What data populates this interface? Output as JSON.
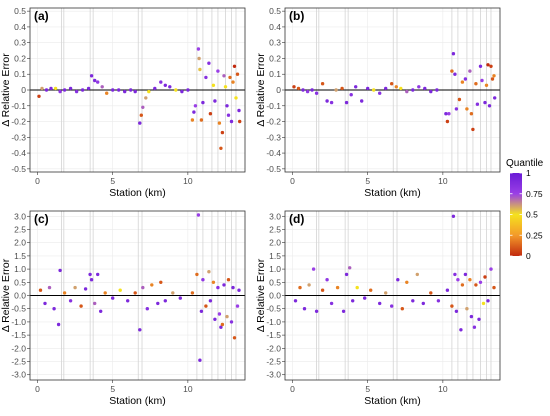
{
  "figure": {
    "ylabel": "Δ Relative Error",
    "xlabel": "Station (km)"
  },
  "legend": {
    "title": "Quantile",
    "ticks": [
      "1",
      "0.75",
      "0.5",
      "0.25",
      "0"
    ],
    "colors": [
      "#6a1bd6",
      "#9a3fe6",
      "#f5e21e",
      "#f39a2a",
      "#c22a0e"
    ]
  },
  "chart_data": [
    {
      "type": "scatter",
      "label": "(a)",
      "xlim": [
        -0.5,
        13.8
      ],
      "ylim": [
        -0.52,
        0.52
      ],
      "xticks": [
        0,
        5,
        10
      ],
      "xtick_labels": [
        "0",
        "5",
        "10"
      ],
      "yticks": [
        -0.5,
        -0.4,
        -0.3,
        -0.2,
        -0.1,
        0,
        0.1,
        0.2,
        0.3,
        0.4,
        0.5
      ],
      "ytick_labels": [
        "-0.5",
        "-0.4",
        "-0.3",
        "-0.2",
        "-0.1",
        "0",
        "0.1",
        "0.2",
        "0.3",
        "0.4",
        "0.5"
      ],
      "vlines": [
        1.6,
        1.75,
        3.5,
        3.7,
        6.7,
        6.95,
        10.6,
        11.0,
        11.6,
        12.0,
        12.5,
        12.9,
        13.2
      ],
      "grid": true,
      "points": [
        [
          0.1,
          -0.04,
          0.05
        ],
        [
          0.3,
          0.01,
          0.6
        ],
        [
          0.6,
          0.0,
          0.9
        ],
        [
          0.9,
          0.01,
          0.9
        ],
        [
          1.2,
          0.01,
          0.5
        ],
        [
          1.5,
          -0.01,
          0.8
        ],
        [
          1.8,
          0.0,
          0.9
        ],
        [
          2.2,
          0.01,
          0.9
        ],
        [
          2.6,
          -0.01,
          0.85
        ],
        [
          3.0,
          0.0,
          0.9
        ],
        [
          3.4,
          0.01,
          0.9
        ],
        [
          3.6,
          0.09,
          0.9
        ],
        [
          3.8,
          0.06,
          0.9
        ],
        [
          4.0,
          0.05,
          0.8
        ],
        [
          4.3,
          0.02,
          0.7
        ],
        [
          4.6,
          -0.02,
          0.2
        ],
        [
          5.0,
          0.0,
          0.9
        ],
        [
          5.4,
          0.0,
          0.9
        ],
        [
          5.8,
          -0.01,
          0.9
        ],
        [
          6.2,
          0.0,
          0.9
        ],
        [
          6.5,
          -0.01,
          0.9
        ],
        [
          6.8,
          -0.21,
          0.9
        ],
        [
          6.9,
          -0.16,
          0.1
        ],
        [
          7.0,
          -0.11,
          0.7
        ],
        [
          7.2,
          -0.05,
          0.6
        ],
        [
          7.4,
          -0.01,
          0.5
        ],
        [
          7.8,
          0.01,
          0.9
        ],
        [
          8.2,
          0.05,
          0.85
        ],
        [
          8.5,
          0.03,
          0.9
        ],
        [
          8.8,
          0.02,
          0.9
        ],
        [
          9.2,
          0.0,
          0.5
        ],
        [
          9.6,
          -0.01,
          0.9
        ],
        [
          10.0,
          0.0,
          0.9
        ],
        [
          10.3,
          -0.19,
          0.2
        ],
        [
          10.4,
          -0.14,
          0.9
        ],
        [
          10.5,
          -0.1,
          0.75
        ],
        [
          10.7,
          0.26,
          0.75
        ],
        [
          10.75,
          0.2,
          0.6
        ],
        [
          10.8,
          0.13,
          0.55
        ],
        [
          10.9,
          -0.19,
          0.15
        ],
        [
          11.0,
          -0.08,
          0.9
        ],
        [
          11.2,
          0.08,
          0.85
        ],
        [
          11.4,
          0.17,
          0.85
        ],
        [
          11.5,
          -0.15,
          0.05
        ],
        [
          11.7,
          0.03,
          0.5
        ],
        [
          11.8,
          -0.07,
          0.9
        ],
        [
          12.0,
          0.12,
          0.75
        ],
        [
          12.1,
          -0.21,
          0.2
        ],
        [
          12.2,
          -0.37,
          0.1
        ],
        [
          12.3,
          -0.27,
          0.05
        ],
        [
          12.4,
          0.09,
          0.7
        ],
        [
          12.5,
          0.02,
          0.5
        ],
        [
          12.6,
          -0.1,
          0.9
        ],
        [
          12.7,
          -0.16,
          0.85
        ],
        [
          12.8,
          0.08,
          0.15
        ],
        [
          12.9,
          -0.2,
          0.9
        ],
        [
          13.0,
          0.05,
          0.2
        ],
        [
          13.1,
          0.15,
          0.0
        ],
        [
          13.2,
          -0.05,
          0.5
        ],
        [
          13.3,
          0.1,
          0.1
        ],
        [
          13.4,
          -0.13,
          0.9
        ],
        [
          13.45,
          -0.2,
          0.05
        ]
      ]
    },
    {
      "type": "scatter",
      "label": "(b)",
      "xlim": [
        -0.5,
        13.8
      ],
      "ylim": [
        -0.52,
        0.52
      ],
      "xticks": [
        0,
        5,
        10
      ],
      "xtick_labels": [
        "0",
        "5",
        "10"
      ],
      "yticks": [
        -0.5,
        -0.4,
        -0.3,
        -0.2,
        -0.1,
        0,
        0.1,
        0.2,
        0.3,
        0.4,
        0.5
      ],
      "ytick_labels": [
        "-0.5",
        "-0.4",
        "-0.3",
        "-0.2",
        "-0.1",
        "0",
        "0.1",
        "0.2",
        "0.3",
        "0.4",
        "0.5"
      ],
      "vlines": [
        1.6,
        1.75,
        3.5,
        3.7,
        6.7,
        6.95,
        10.6,
        11.0,
        11.6,
        12.0,
        12.5,
        12.9,
        13.2
      ],
      "grid": true,
      "points": [
        [
          0.1,
          0.02,
          0.05
        ],
        [
          0.4,
          0.01,
          0.1
        ],
        [
          0.7,
          0.0,
          0.9
        ],
        [
          1.0,
          -0.01,
          0.8
        ],
        [
          1.3,
          0.0,
          0.9
        ],
        [
          1.6,
          -0.02,
          0.85
        ],
        [
          2.0,
          0.04,
          0.1
        ],
        [
          2.3,
          -0.07,
          0.9
        ],
        [
          2.6,
          -0.08,
          0.85
        ],
        [
          2.9,
          0.0,
          0.6
        ],
        [
          3.3,
          0.01,
          0.1
        ],
        [
          3.6,
          -0.08,
          0.9
        ],
        [
          3.9,
          -0.03,
          0.85
        ],
        [
          4.2,
          0.02,
          0.9
        ],
        [
          4.6,
          -0.07,
          0.9
        ],
        [
          5.0,
          0.01,
          0.9
        ],
        [
          5.4,
          0.0,
          0.5
        ],
        [
          5.8,
          -0.02,
          0.85
        ],
        [
          6.2,
          0.01,
          0.9
        ],
        [
          6.6,
          0.04,
          0.1
        ],
        [
          6.9,
          0.02,
          0.2
        ],
        [
          7.2,
          0.01,
          0.5
        ],
        [
          7.6,
          -0.01,
          0.7
        ],
        [
          8.0,
          0.0,
          0.9
        ],
        [
          8.4,
          0.02,
          0.8
        ],
        [
          8.8,
          0.01,
          0.9
        ],
        [
          9.2,
          -0.01,
          0.9
        ],
        [
          9.6,
          0.0,
          0.9
        ],
        [
          10.2,
          -0.15,
          0.9
        ],
        [
          10.3,
          -0.2,
          0.05
        ],
        [
          10.4,
          -0.15,
          0.75
        ],
        [
          10.6,
          0.12,
          0.15
        ],
        [
          10.7,
          0.23,
          0.9
        ],
        [
          10.8,
          0.1,
          0.9
        ],
        [
          10.9,
          -0.12,
          0.85
        ],
        [
          11.1,
          -0.06,
          0.1
        ],
        [
          11.3,
          0.05,
          0.2
        ],
        [
          11.5,
          0.07,
          0.85
        ],
        [
          11.6,
          -0.12,
          0.2
        ],
        [
          11.8,
          0.12,
          0.7
        ],
        [
          11.9,
          -0.15,
          0.15
        ],
        [
          12.0,
          -0.25,
          0.05
        ],
        [
          12.2,
          0.04,
          0.15
        ],
        [
          12.3,
          -0.09,
          0.85
        ],
        [
          12.5,
          0.15,
          0.9
        ],
        [
          12.6,
          0.06,
          0.75
        ],
        [
          12.8,
          -0.08,
          0.9
        ],
        [
          12.9,
          0.03,
          0.2
        ],
        [
          13.0,
          0.16,
          0.0
        ],
        [
          13.1,
          -0.1,
          0.9
        ],
        [
          13.2,
          0.15,
          0.05
        ],
        [
          13.3,
          0.07,
          0.1
        ],
        [
          13.4,
          0.09,
          0.2
        ],
        [
          13.45,
          -0.05,
          0.9
        ]
      ]
    },
    {
      "type": "scatter",
      "label": "(c)",
      "xlim": [
        -0.5,
        13.8
      ],
      "ylim": [
        -3.2,
        3.2
      ],
      "xticks": [
        0,
        5,
        10
      ],
      "xtick_labels": [
        "0",
        "5",
        "10"
      ],
      "yticks": [
        -3.0,
        -2.5,
        -2.0,
        -1.5,
        -1.0,
        -0.5,
        0.0,
        0.5,
        1.0,
        1.5,
        2.0,
        2.5,
        3.0
      ],
      "ytick_labels": [
        "-3.0",
        "-2.5",
        "-2.0",
        "-1.5",
        "-1.0",
        "-0.5",
        "0.0",
        "0.5",
        "1.0",
        "1.5",
        "2.0",
        "2.5",
        "3.0"
      ],
      "vlines": [
        1.6,
        1.75,
        3.5,
        3.7,
        6.7,
        6.95,
        10.6,
        11.0,
        11.6,
        12.0,
        12.5,
        12.9,
        13.2
      ],
      "grid": true,
      "points": [
        [
          0.2,
          0.2,
          0.1
        ],
        [
          0.5,
          -0.3,
          0.9
        ],
        [
          0.8,
          0.3,
          0.7
        ],
        [
          1.1,
          -0.5,
          0.9
        ],
        [
          1.4,
          -1.1,
          0.9
        ],
        [
          1.5,
          0.95,
          0.9
        ],
        [
          1.8,
          0.1,
          0.2
        ],
        [
          2.2,
          -0.2,
          0.85
        ],
        [
          2.5,
          0.3,
          0.6
        ],
        [
          2.9,
          -0.4,
          0.1
        ],
        [
          3.2,
          0.25,
          0.9
        ],
        [
          3.5,
          0.8,
          0.9
        ],
        [
          3.6,
          0.6,
          0.9
        ],
        [
          3.8,
          -0.3,
          0.7
        ],
        [
          4.0,
          0.8,
          0.9
        ],
        [
          4.2,
          -0.6,
          0.9
        ],
        [
          4.5,
          0.1,
          0.2
        ],
        [
          5.0,
          -0.1,
          0.9
        ],
        [
          5.5,
          0.2,
          0.5
        ],
        [
          6.0,
          -0.2,
          0.9
        ],
        [
          6.5,
          0.1,
          0.1
        ],
        [
          6.8,
          -1.3,
          0.9
        ],
        [
          7.0,
          0.3,
          0.7
        ],
        [
          7.3,
          -0.5,
          0.85
        ],
        [
          7.6,
          0.4,
          0.2
        ],
        [
          8.0,
          -0.3,
          0.9
        ],
        [
          8.2,
          0.5,
          0.1
        ],
        [
          8.5,
          -0.2,
          0.9
        ],
        [
          9.0,
          0.1,
          0.6
        ],
        [
          9.5,
          -0.1,
          0.9
        ],
        [
          10.3,
          0.1,
          0.15
        ],
        [
          10.6,
          0.8,
          0.15
        ],
        [
          10.7,
          3.05,
          0.75
        ],
        [
          10.8,
          -2.45,
          0.9
        ],
        [
          10.9,
          -0.6,
          0.9
        ],
        [
          11.0,
          0.6,
          0.8
        ],
        [
          11.2,
          -0.4,
          0.1
        ],
        [
          11.4,
          0.9,
          0.6
        ],
        [
          11.5,
          -0.2,
          0.9
        ],
        [
          11.7,
          0.5,
          0.2
        ],
        [
          11.8,
          -0.9,
          0.9
        ],
        [
          12.0,
          0.3,
          0.85
        ],
        [
          12.1,
          -0.7,
          0.75
        ],
        [
          12.2,
          -1.2,
          0.9
        ],
        [
          12.3,
          -1.1,
          0.15
        ],
        [
          12.4,
          0.4,
          0.9
        ],
        [
          12.6,
          -0.8,
          0.6
        ],
        [
          12.7,
          0.6,
          0.1
        ],
        [
          12.9,
          -1.0,
          0.85
        ],
        [
          13.0,
          0.3,
          0.9
        ],
        [
          13.1,
          -1.6,
          0.1
        ],
        [
          13.3,
          -0.4,
          0.75
        ],
        [
          13.4,
          0.2,
          0.9
        ]
      ]
    },
    {
      "type": "scatter",
      "label": "(d)",
      "xlim": [
        -0.5,
        13.8
      ],
      "ylim": [
        -3.2,
        3.2
      ],
      "xticks": [
        0,
        5,
        10
      ],
      "xtick_labels": [
        "0",
        "5",
        "10"
      ],
      "yticks": [
        -3.0,
        -2.5,
        -2.0,
        -1.5,
        -1.0,
        -0.5,
        0.0,
        0.5,
        1.0,
        1.5,
        2.0,
        2.5,
        3.0
      ],
      "ytick_labels": [
        "-3.0",
        "-2.5",
        "-2.0",
        "-1.5",
        "-1.0",
        "-0.5",
        "0.0",
        "0.5",
        "1.0",
        "1.5",
        "2.0",
        "2.5",
        "3.0"
      ],
      "vlines": [
        1.6,
        1.75,
        3.5,
        3.7,
        6.7,
        6.95,
        10.6,
        11.0,
        11.6,
        12.0,
        12.5,
        12.9,
        13.2
      ],
      "grid": true,
      "points": [
        [
          0.2,
          -0.2,
          0.9
        ],
        [
          0.5,
          0.3,
          0.15
        ],
        [
          0.8,
          -0.5,
          0.9
        ],
        [
          1.1,
          0.4,
          0.6
        ],
        [
          1.4,
          1.0,
          0.75
        ],
        [
          1.6,
          -0.6,
          0.9
        ],
        [
          2.0,
          0.2,
          0.1
        ],
        [
          2.3,
          0.6,
          0.8
        ],
        [
          2.6,
          -0.3,
          0.85
        ],
        [
          3.0,
          0.3,
          0.2
        ],
        [
          3.4,
          -0.6,
          0.9
        ],
        [
          3.6,
          0.8,
          0.9
        ],
        [
          3.8,
          1.05,
          0.7
        ],
        [
          4.0,
          -0.2,
          0.9
        ],
        [
          4.3,
          0.3,
          0.5
        ],
        [
          4.8,
          -0.1,
          0.9
        ],
        [
          5.2,
          0.2,
          0.15
        ],
        [
          5.8,
          -0.3,
          0.9
        ],
        [
          6.2,
          0.1,
          0.6
        ],
        [
          6.6,
          -0.4,
          0.85
        ],
        [
          7.0,
          0.6,
          0.9
        ],
        [
          7.3,
          -0.5,
          0.1
        ],
        [
          7.6,
          0.5,
          0.2
        ],
        [
          8.0,
          -0.2,
          0.9
        ],
        [
          8.3,
          0.8,
          0.6
        ],
        [
          8.7,
          -0.3,
          0.9
        ],
        [
          9.2,
          0.1,
          0.1
        ],
        [
          9.7,
          -0.2,
          0.85
        ],
        [
          10.3,
          0.2,
          0.9
        ],
        [
          10.6,
          -0.4,
          0.1
        ],
        [
          10.7,
          3.0,
          0.9
        ],
        [
          10.8,
          0.8,
          0.85
        ],
        [
          10.9,
          -0.6,
          0.9
        ],
        [
          11.0,
          0.6,
          0.75
        ],
        [
          11.2,
          -1.3,
          0.9
        ],
        [
          11.3,
          0.4,
          0.15
        ],
        [
          11.5,
          0.8,
          0.9
        ],
        [
          11.6,
          -0.5,
          0.6
        ],
        [
          11.8,
          0.6,
          0.2
        ],
        [
          11.9,
          -0.8,
          0.9
        ],
        [
          12.1,
          -1.2,
          0.85
        ],
        [
          12.2,
          0.4,
          0.1
        ],
        [
          12.4,
          -0.9,
          0.9
        ],
        [
          12.5,
          0.5,
          0.75
        ],
        [
          12.7,
          -0.3,
          0.5
        ],
        [
          12.8,
          0.7,
          0.05
        ],
        [
          13.0,
          -0.2,
          0.9
        ],
        [
          13.2,
          1.0,
          0.75
        ],
        [
          13.4,
          0.3,
          0.1
        ]
      ]
    }
  ]
}
